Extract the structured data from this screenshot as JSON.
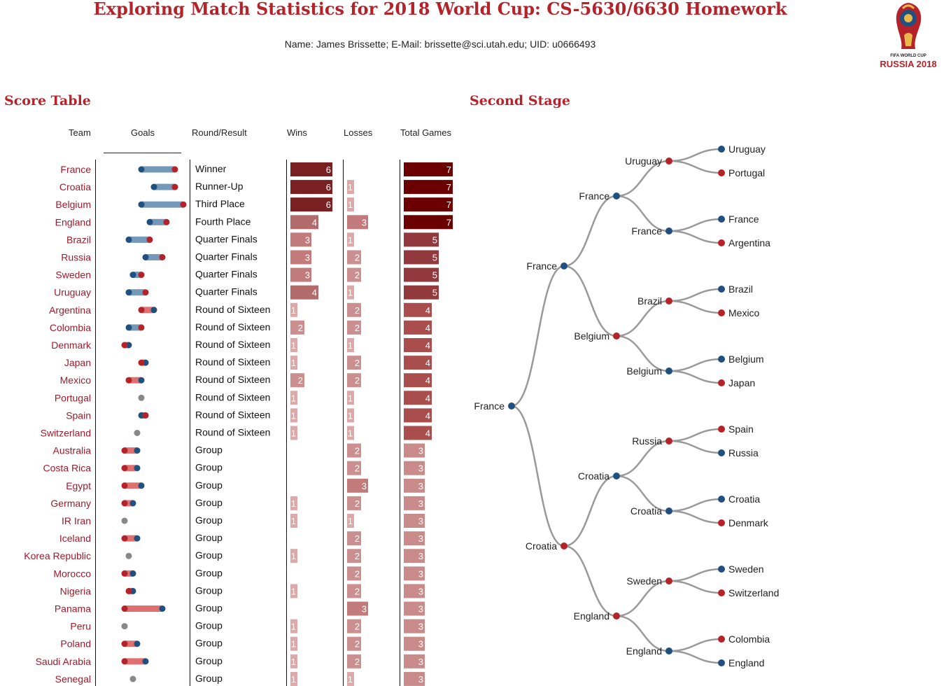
{
  "header": {
    "title": "Exploring Match Statistics for 2018 World Cup: CS-5630/6630 Homework",
    "subtitle": "Name: James Brissette; E-Mail: brissette@sci.utah.edu; UID: u0666493",
    "logo_small": "FIFA WORLD CUP",
    "logo_big": "RUSSIA 2018"
  },
  "score_table": {
    "title": "Score Table",
    "columns": {
      "team": "Team",
      "goals": "Goals",
      "round": "Round/Result",
      "wins": "Wins",
      "losses": "Losses",
      "total": "Total Games"
    },
    "colors": {
      "goals_made": "#b5232a",
      "goals_conceded": "#1f5080",
      "delta_pos": "#7398b8",
      "delta_neg": "#e07070",
      "tie": "#888888",
      "team_text": "#a3192a"
    },
    "rows": [
      {
        "team": "France",
        "gm": 14,
        "gc": 6,
        "result": "Winner",
        "wins": 6,
        "losses": 0,
        "total": 7
      },
      {
        "team": "Croatia",
        "gm": 14,
        "gc": 9,
        "result": "Runner-Up",
        "wins": 6,
        "losses": 1,
        "total": 7
      },
      {
        "team": "Belgium",
        "gm": 16,
        "gc": 6,
        "result": "Third Place",
        "wins": 6,
        "losses": 1,
        "total": 7
      },
      {
        "team": "England",
        "gm": 12,
        "gc": 8,
        "result": "Fourth Place",
        "wins": 4,
        "losses": 3,
        "total": 7
      },
      {
        "team": "Brazil",
        "gm": 8,
        "gc": 3,
        "result": "Quarter Finals",
        "wins": 3,
        "losses": 1,
        "total": 5
      },
      {
        "team": "Russia",
        "gm": 11,
        "gc": 7,
        "result": "Quarter Finals",
        "wins": 3,
        "losses": 2,
        "total": 5
      },
      {
        "team": "Sweden",
        "gm": 6,
        "gc": 4,
        "result": "Quarter Finals",
        "wins": 3,
        "losses": 2,
        "total": 5
      },
      {
        "team": "Uruguay",
        "gm": 7,
        "gc": 3,
        "result": "Quarter Finals",
        "wins": 4,
        "losses": 1,
        "total": 5
      },
      {
        "team": "Argentina",
        "gm": 6,
        "gc": 9,
        "result": "Round of Sixteen",
        "wins": 1,
        "losses": 2,
        "total": 4
      },
      {
        "team": "Colombia",
        "gm": 6,
        "gc": 3,
        "result": "Round of Sixteen",
        "wins": 2,
        "losses": 2,
        "total": 4
      },
      {
        "team": "Denmark",
        "gm": 2,
        "gc": 3,
        "result": "Round of Sixteen",
        "wins": 1,
        "losses": 1,
        "total": 4
      },
      {
        "team": "Japan",
        "gm": 6,
        "gc": 7,
        "result": "Round of Sixteen",
        "wins": 1,
        "losses": 2,
        "total": 4
      },
      {
        "team": "Mexico",
        "gm": 3,
        "gc": 6,
        "result": "Round of Sixteen",
        "wins": 2,
        "losses": 2,
        "total": 4
      },
      {
        "team": "Portugal",
        "gm": 6,
        "gc": 6,
        "result": "Round of Sixteen",
        "wins": 1,
        "losses": 1,
        "total": 4
      },
      {
        "team": "Spain",
        "gm": 7,
        "gc": 6,
        "result": "Round of Sixteen",
        "wins": 1,
        "losses": 1,
        "total": 4
      },
      {
        "team": "Switzerland",
        "gm": 5,
        "gc": 5,
        "result": "Round of Sixteen",
        "wins": 1,
        "losses": 1,
        "total": 4
      },
      {
        "team": "Australia",
        "gm": 2,
        "gc": 5,
        "result": "Group",
        "wins": 0,
        "losses": 2,
        "total": 3
      },
      {
        "team": "Costa Rica",
        "gm": 2,
        "gc": 5,
        "result": "Group",
        "wins": 0,
        "losses": 2,
        "total": 3
      },
      {
        "team": "Egypt",
        "gm": 2,
        "gc": 6,
        "result": "Group",
        "wins": 0,
        "losses": 3,
        "total": 3
      },
      {
        "team": "Germany",
        "gm": 2,
        "gc": 4,
        "result": "Group",
        "wins": 1,
        "losses": 2,
        "total": 3
      },
      {
        "team": "IR Iran",
        "gm": 2,
        "gc": 2,
        "result": "Group",
        "wins": 1,
        "losses": 1,
        "total": 3
      },
      {
        "team": "Iceland",
        "gm": 2,
        "gc": 5,
        "result": "Group",
        "wins": 0,
        "losses": 2,
        "total": 3
      },
      {
        "team": "Korea Republic",
        "gm": 3,
        "gc": 3,
        "result": "Group",
        "wins": 1,
        "losses": 2,
        "total": 3
      },
      {
        "team": "Morocco",
        "gm": 2,
        "gc": 4,
        "result": "Group",
        "wins": 0,
        "losses": 2,
        "total": 3
      },
      {
        "team": "Nigeria",
        "gm": 3,
        "gc": 4,
        "result": "Group",
        "wins": 1,
        "losses": 2,
        "total": 3
      },
      {
        "team": "Panama",
        "gm": 2,
        "gc": 11,
        "result": "Group",
        "wins": 0,
        "losses": 3,
        "total": 3
      },
      {
        "team": "Peru",
        "gm": 2,
        "gc": 2,
        "result": "Group",
        "wins": 1,
        "losses": 2,
        "total": 3
      },
      {
        "team": "Poland",
        "gm": 2,
        "gc": 5,
        "result": "Group",
        "wins": 1,
        "losses": 2,
        "total": 3
      },
      {
        "team": "Saudi Arabia",
        "gm": 2,
        "gc": 7,
        "result": "Group",
        "wins": 1,
        "losses": 2,
        "total": 3
      },
      {
        "team": "Senegal",
        "gm": 4,
        "gc": 4,
        "result": "Group",
        "wins": 1,
        "losses": 1,
        "total": 3
      }
    ]
  },
  "second_stage": {
    "title": "Second Stage",
    "colors": {
      "win": "#1f5080",
      "loss": "#b5232a",
      "link": "#999999"
    },
    "nodes": [
      {
        "id": "F",
        "name": "France",
        "winner": true
      },
      {
        "id": "SF1",
        "name": "France",
        "parent": "F",
        "winner": true
      },
      {
        "id": "SF2",
        "name": "Croatia",
        "parent": "F",
        "winner": false
      },
      {
        "id": "QF1",
        "name": "France",
        "parent": "SF1",
        "winner": true
      },
      {
        "id": "QF2",
        "name": "Belgium",
        "parent": "SF1",
        "winner": false
      },
      {
        "id": "QF3",
        "name": "Croatia",
        "parent": "SF2",
        "winner": true
      },
      {
        "id": "QF4",
        "name": "England",
        "parent": "SF2",
        "winner": false
      },
      {
        "id": "R1",
        "name": "Uruguay",
        "parent": "QF1",
        "winner": false
      },
      {
        "id": "R2",
        "name": "France",
        "parent": "QF1",
        "winner": true
      },
      {
        "id": "R3",
        "name": "Brazil",
        "parent": "QF2",
        "winner": false
      },
      {
        "id": "R4",
        "name": "Belgium",
        "parent": "QF2",
        "winner": true
      },
      {
        "id": "R5",
        "name": "Russia",
        "parent": "QF3",
        "winner": false
      },
      {
        "id": "R6",
        "name": "Croatia",
        "parent": "QF3",
        "winner": true
      },
      {
        "id": "R7",
        "name": "Sweden",
        "parent": "QF4",
        "winner": false
      },
      {
        "id": "R8",
        "name": "England",
        "parent": "QF4",
        "winner": true
      },
      {
        "id": "L1",
        "name": "Uruguay",
        "parent": "R1",
        "winner": true
      },
      {
        "id": "L2",
        "name": "Portugal",
        "parent": "R1",
        "winner": false
      },
      {
        "id": "L3",
        "name": "France",
        "parent": "R2",
        "winner": true
      },
      {
        "id": "L4",
        "name": "Argentina",
        "parent": "R2",
        "winner": false
      },
      {
        "id": "L5",
        "name": "Brazil",
        "parent": "R3",
        "winner": true
      },
      {
        "id": "L6",
        "name": "Mexico",
        "parent": "R3",
        "winner": false
      },
      {
        "id": "L7",
        "name": "Belgium",
        "parent": "R4",
        "winner": true
      },
      {
        "id": "L8",
        "name": "Japan",
        "parent": "R4",
        "winner": false
      },
      {
        "id": "L9",
        "name": "Spain",
        "parent": "R5",
        "winner": false
      },
      {
        "id": "L10",
        "name": "Russia",
        "parent": "R5",
        "winner": true
      },
      {
        "id": "L11",
        "name": "Croatia",
        "parent": "R6",
        "winner": true
      },
      {
        "id": "L12",
        "name": "Denmark",
        "parent": "R6",
        "winner": false
      },
      {
        "id": "L13",
        "name": "Sweden",
        "parent": "R7",
        "winner": true
      },
      {
        "id": "L14",
        "name": "Switzerland",
        "parent": "R7",
        "winner": false
      },
      {
        "id": "L15",
        "name": "Colombia",
        "parent": "R8",
        "winner": false
      },
      {
        "id": "L16",
        "name": "England",
        "parent": "R8",
        "winner": true
      }
    ]
  }
}
